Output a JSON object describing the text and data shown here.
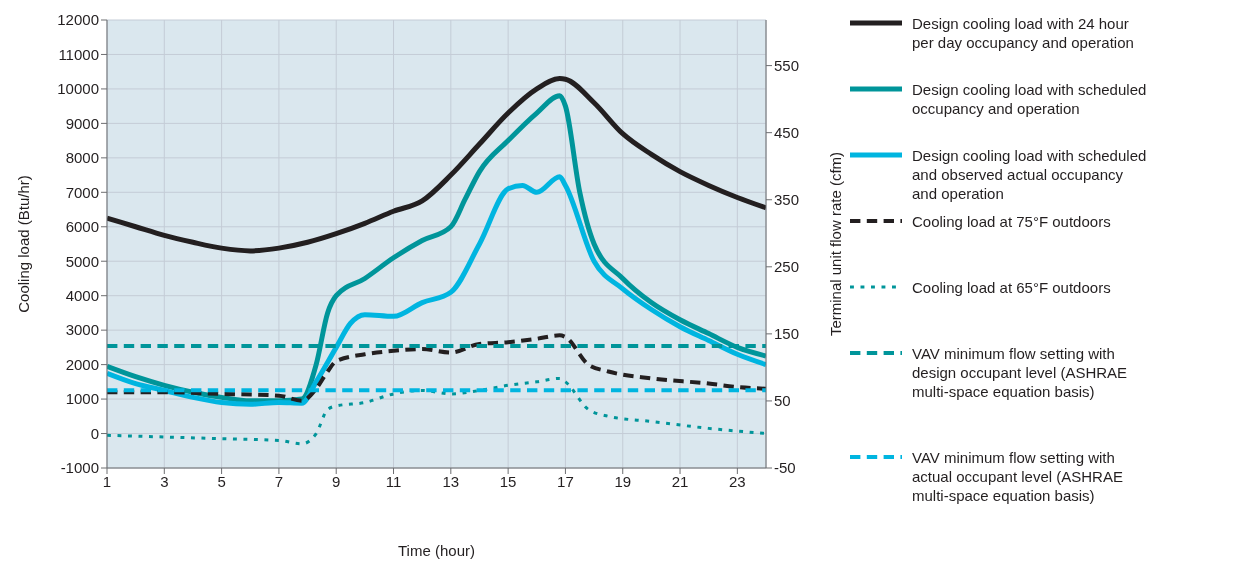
{
  "chart_data": {
    "type": "line",
    "xlabel": "Time (hour)",
    "ylabel": "Cooling load (Btu/hr)",
    "y2label": "Terminal unit flow rate (cfm)",
    "xlim": [
      1,
      24
    ],
    "xticks": [
      1,
      3,
      5,
      7,
      9,
      11,
      13,
      15,
      17,
      19,
      21,
      23
    ],
    "ylim": [
      -1000,
      12000
    ],
    "yticks": [
      -1000,
      0,
      1000,
      2000,
      3000,
      4000,
      5000,
      6000,
      7000,
      8000,
      9000,
      10000,
      11000,
      12000
    ],
    "y2lim": [
      -50,
      618
    ],
    "y2ticks": [
      -50,
      50,
      150,
      250,
      350,
      450,
      550
    ],
    "grid": true,
    "legend": "right",
    "marker": "none",
    "series": [
      {
        "name": "Design cooling load with 24 hour per day occupancy and operation",
        "color": "#231f20",
        "line_style": "solid",
        "x": [
          1,
          2,
          3,
          4,
          5,
          6,
          7,
          8,
          9,
          10,
          11,
          12,
          13,
          14,
          15,
          16,
          16.8,
          17,
          18,
          19,
          20,
          21,
          22,
          23,
          24
        ],
        "values": [
          6250,
          6000,
          5750,
          5550,
          5380,
          5300,
          5380,
          5550,
          5800,
          6100,
          6450,
          6750,
          7500,
          8400,
          9300,
          10000,
          10300,
          10280,
          9600,
          8700,
          8100,
          7600,
          7200,
          6850,
          6550
        ]
      },
      {
        "name": "Design cooling load with scheduled occupancy and operation",
        "color": "#00959a",
        "line_style": "solid",
        "x": [
          1,
          2,
          3,
          4,
          5,
          6,
          7,
          7.8,
          8.3,
          8.7,
          9,
          10,
          11,
          12,
          13,
          13.5,
          14,
          15,
          16,
          16.8,
          17,
          17.5,
          18,
          19,
          20,
          21,
          22,
          23,
          24
        ],
        "values": [
          1950,
          1650,
          1400,
          1200,
          1050,
          950,
          950,
          1000,
          2000,
          3500,
          4000,
          4500,
          5100,
          5600,
          6000,
          6800,
          7600,
          8500,
          9300,
          9800,
          9500,
          7000,
          5500,
          4500,
          3800,
          3300,
          2900,
          2500,
          2250
        ]
      },
      {
        "name": "Design cooling load with scheduled and observed actual occupancy and operation",
        "color": "#00b5e0",
        "line_style": "solid",
        "x": [
          1,
          2,
          3,
          4,
          5,
          6,
          7,
          7.8,
          8.3,
          9,
          9.5,
          10,
          11,
          12,
          13,
          14,
          15,
          15.5,
          16,
          16.8,
          17,
          18,
          19,
          20,
          21,
          22,
          23,
          24
        ],
        "values": [
          1750,
          1450,
          1250,
          1050,
          900,
          850,
          900,
          880,
          1500,
          2500,
          3200,
          3450,
          3400,
          3800,
          4100,
          5500,
          7100,
          7200,
          7000,
          7450,
          7200,
          5000,
          4200,
          3600,
          3100,
          2700,
          2300,
          2000
        ]
      },
      {
        "name": "Cooling load at 75°F outdoors",
        "color": "#231f20",
        "line_style": "dashed",
        "x": [
          1,
          3,
          5,
          7,
          7.8,
          8.3,
          8.7,
          9,
          10,
          11,
          12,
          13,
          14,
          15,
          16,
          16.8,
          17,
          17.8,
          18.5,
          20,
          22,
          23,
          24
        ],
        "values": [
          1200,
          1200,
          1150,
          1100,
          950,
          1300,
          1800,
          2100,
          2300,
          2400,
          2450,
          2350,
          2600,
          2650,
          2750,
          2850,
          2800,
          2000,
          1800,
          1600,
          1450,
          1350,
          1300
        ]
      },
      {
        "name": "Cooling load at 65°F outdoors",
        "color": "#00959a",
        "line_style": "dotted",
        "x": [
          1,
          3,
          5,
          7,
          7.8,
          8.3,
          8.7,
          9,
          10,
          11,
          12,
          13,
          14,
          15,
          16,
          16.8,
          17,
          17.8,
          18.5,
          20,
          22,
          24
        ],
        "values": [
          -50,
          -100,
          -150,
          -200,
          -300,
          0,
          700,
          800,
          900,
          1150,
          1250,
          1150,
          1250,
          1400,
          1500,
          1600,
          1500,
          700,
          500,
          350,
          150,
          0
        ]
      },
      {
        "name": "VAV minimum flow setting with design occupant level (ASHRAE multi-space equation basis)",
        "color": "#00959a",
        "line_style": "dashed",
        "axis": "y2",
        "x": [
          1,
          24
        ],
        "values": [
          132,
          132
        ]
      },
      {
        "name": "VAV minimum flow setting with actual occupant level (ASHRAE multi-space equation basis)",
        "color": "#00b5e0",
        "line_style": "dashed",
        "axis": "y2",
        "x": [
          1,
          24
        ],
        "values": [
          66,
          66
        ]
      }
    ]
  }
}
